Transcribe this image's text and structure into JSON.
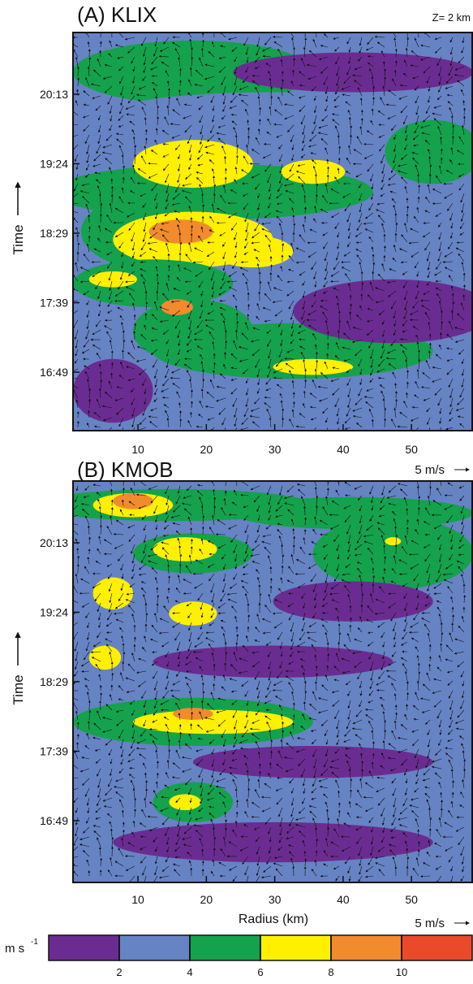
{
  "chart_data": [
    {
      "type": "contour",
      "title": "(A) KLIX",
      "annotation": "Z= 2 km",
      "ylabel": "Time",
      "yticks": [
        "20:13",
        "19:24",
        "18:29",
        "17:39",
        "16:49"
      ],
      "xlim": [
        0.5,
        59
      ],
      "xticks": [
        10,
        20,
        30,
        40,
        50
      ],
      "vector_key": "5 m/s"
    },
    {
      "type": "contour",
      "title": "(B) KMOB",
      "ylabel": "Time",
      "xlabel": "Radius (km)",
      "yticks": [
        "20:13",
        "19:24",
        "18:29",
        "17:39",
        "16:49"
      ],
      "xlim": [
        0.5,
        59
      ],
      "xticks": [
        10,
        20,
        30,
        40,
        50
      ],
      "vector_key": "5 m/s"
    }
  ],
  "colorbar": {
    "unit": "m s",
    "unit_exponent": "-1",
    "lim": [
      0,
      12
    ],
    "ticks": [
      2,
      4,
      6,
      8,
      10
    ],
    "colors": [
      "#6b2c91",
      "#6683c4",
      "#14a24c",
      "#fff000",
      "#f28a2e",
      "#ea4a2a"
    ]
  }
}
